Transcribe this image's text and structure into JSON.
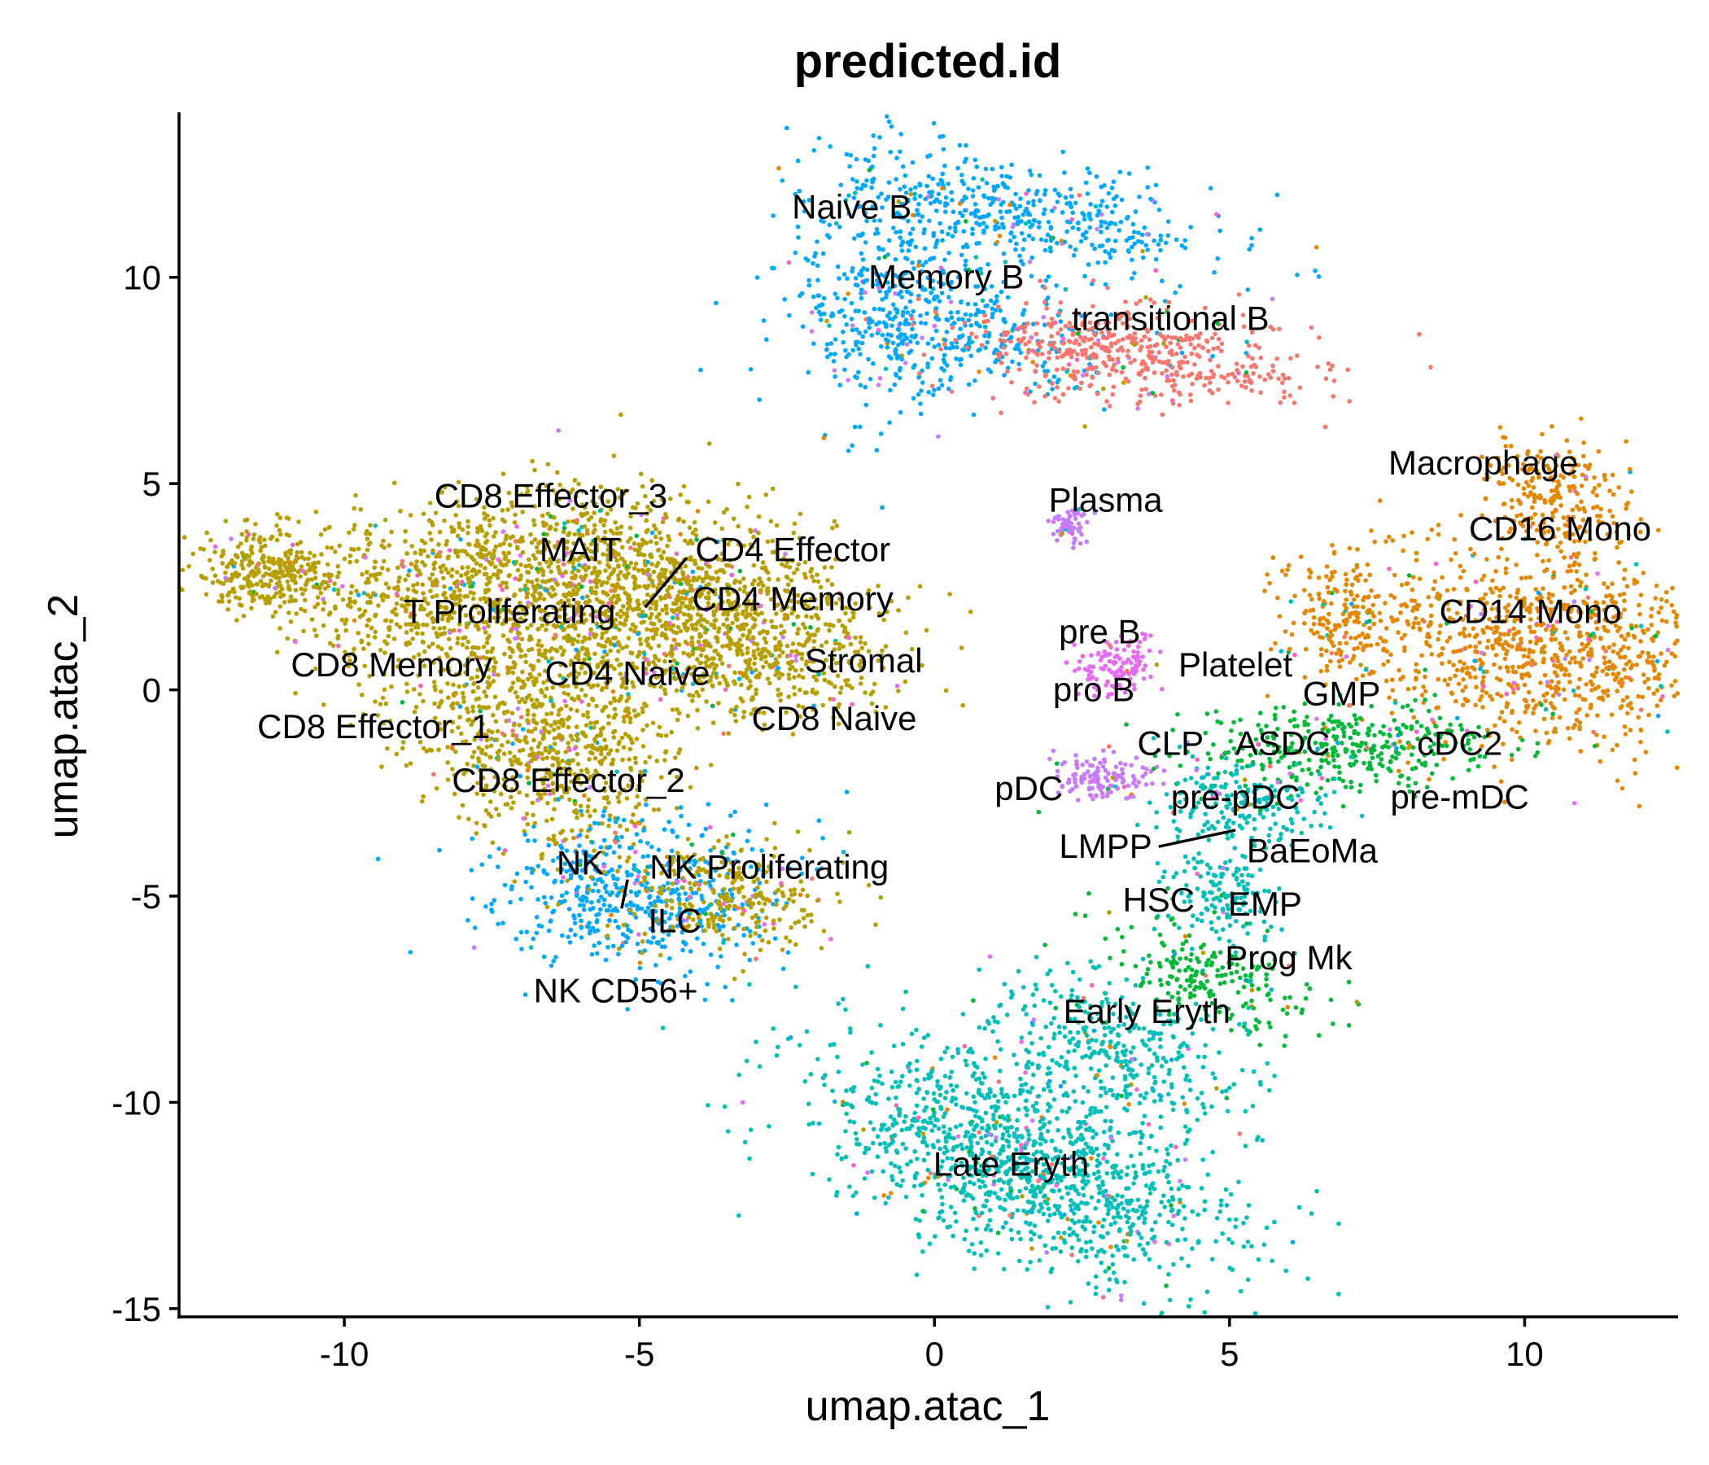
{
  "chart_data": {
    "type": "scatter",
    "title": "predicted.id",
    "xlabel": "umap.atac_1",
    "ylabel": "umap.atac_2",
    "xlim": [
      -12.8,
      12.6
    ],
    "ylim": [
      -15.2,
      14
    ],
    "xticks": [
      -10,
      -5,
      0,
      5,
      10
    ],
    "xtick_labels": [
      "-10",
      "-5",
      "0",
      "5",
      "10"
    ],
    "yticks": [
      -15,
      -10,
      -5,
      0,
      5,
      10
    ],
    "ytick_labels": [
      "-15",
      "-10",
      "-5",
      "0",
      "5",
      "10"
    ],
    "grid": false,
    "legend": "none",
    "colors": {
      "t_cells": "#B79F00",
      "b_naive_memory": "#00A9FF",
      "transitional_b": "#F8766D",
      "myeloid": "#E58700",
      "erythroid": "#00C0B8",
      "progenitor": "#00BA38",
      "plasma_pdc": "#C77CFF",
      "pre_b": "#E76BF3",
      "nk": "#00A9FF",
      "prog_mk": "#FF61C3"
    },
    "clusters": [
      {
        "label": "Naive B",
        "x": -1.4,
        "y": 11.7,
        "color": "#00A9FF"
      },
      {
        "label": "Memory B",
        "x": 0.2,
        "y": 10.0,
        "color": "#00A9FF"
      },
      {
        "label": "transitional B",
        "x": 4.0,
        "y": 9.0,
        "color": "#F8766D"
      },
      {
        "label": "Macrophage",
        "x": 9.3,
        "y": 5.5,
        "color": "#E58700"
      },
      {
        "label": "Plasma",
        "x": 2.9,
        "y": 4.6,
        "color": "#C77CFF"
      },
      {
        "label": "CD16 Mono",
        "x": 10.6,
        "y": 3.9,
        "color": "#E58700"
      },
      {
        "label": "CD14 Mono",
        "x": 10.1,
        "y": 1.9,
        "color": "#E58700"
      },
      {
        "label": "CD8 Effector_3",
        "x": -6.5,
        "y": 4.7,
        "color": "#B79F00"
      },
      {
        "label": "MAIT",
        "x": -6.0,
        "y": 3.4,
        "color": "#B79F00"
      },
      {
        "label": "CD4 Effector",
        "x": -2.4,
        "y": 3.4,
        "color": "#B79F00"
      },
      {
        "label": "CD4 Memory",
        "x": -2.4,
        "y": 2.2,
        "color": "#B79F00"
      },
      {
        "label": "T Proliferating",
        "x": -7.2,
        "y": 1.9,
        "color": "#B79F00"
      },
      {
        "label": "Stromal",
        "x": -1.2,
        "y": 0.7,
        "color": "#B79F00"
      },
      {
        "label": "CD8 Memory",
        "x": -9.2,
        "y": 0.6,
        "color": "#B79F00"
      },
      {
        "label": "CD4 Naive",
        "x": -5.2,
        "y": 0.4,
        "color": "#B79F00"
      },
      {
        "label": "CD8 Naive",
        "x": -1.7,
        "y": -0.7,
        "color": "#B79F00"
      },
      {
        "label": "CD8 Effector_1",
        "x": -9.5,
        "y": -0.9,
        "color": "#B79F00"
      },
      {
        "label": "CD8 Effector_2",
        "x": -6.2,
        "y": -2.2,
        "color": "#B79F00"
      },
      {
        "label": "NK",
        "x": -6.0,
        "y": -4.2,
        "color": "#00A9FF"
      },
      {
        "label": "NK Proliferating",
        "x": -2.8,
        "y": -4.3,
        "color": "#B79F00"
      },
      {
        "label": "ILC",
        "x": -4.4,
        "y": -5.6,
        "color": "#00A9FF"
      },
      {
        "label": "NK CD56+",
        "x": -5.4,
        "y": -7.3,
        "color": "#00A9FF"
      },
      {
        "label": "pre B",
        "x": 2.8,
        "y": 1.4,
        "color": "#E76BF3"
      },
      {
        "label": "Platelet",
        "x": 5.1,
        "y": 0.6,
        "color": "#E76BF3"
      },
      {
        "label": "pro B",
        "x": 2.7,
        "y": 0.0,
        "color": "#E76BF3"
      },
      {
        "label": "GMP",
        "x": 6.9,
        "y": -0.1,
        "color": "#00BA38"
      },
      {
        "label": "CLP",
        "x": 4.0,
        "y": -1.3,
        "color": "#00BA38"
      },
      {
        "label": "ASDC",
        "x": 5.9,
        "y": -1.3,
        "color": "#00BA38"
      },
      {
        "label": "cDC2",
        "x": 8.9,
        "y": -1.3,
        "color": "#00BA38"
      },
      {
        "label": "pDC",
        "x": 1.6,
        "y": -2.4,
        "color": "#C77CFF"
      },
      {
        "label": "pre-pDC",
        "x": 5.1,
        "y": -2.6,
        "color": "#00BA38"
      },
      {
        "label": "pre-mDC",
        "x": 8.9,
        "y": -2.6,
        "color": "#00BA38"
      },
      {
        "label": "LMPP",
        "x": 2.9,
        "y": -3.8,
        "color": "#00BA38"
      },
      {
        "label": "BaEoMa",
        "x": 6.4,
        "y": -3.9,
        "color": "#00BA38"
      },
      {
        "label": "HSC",
        "x": 3.8,
        "y": -5.1,
        "color": "#00C0B8"
      },
      {
        "label": "EMP",
        "x": 5.6,
        "y": -5.2,
        "color": "#00BA38"
      },
      {
        "label": "Prog Mk",
        "x": 6.0,
        "y": -6.5,
        "color": "#FF61C3"
      },
      {
        "label": "Early Eryth",
        "x": 3.6,
        "y": -7.8,
        "color": "#00C0B8"
      },
      {
        "label": "Late Eryth",
        "x": 1.3,
        "y": -11.5,
        "color": "#00C0B8"
      }
    ]
  }
}
